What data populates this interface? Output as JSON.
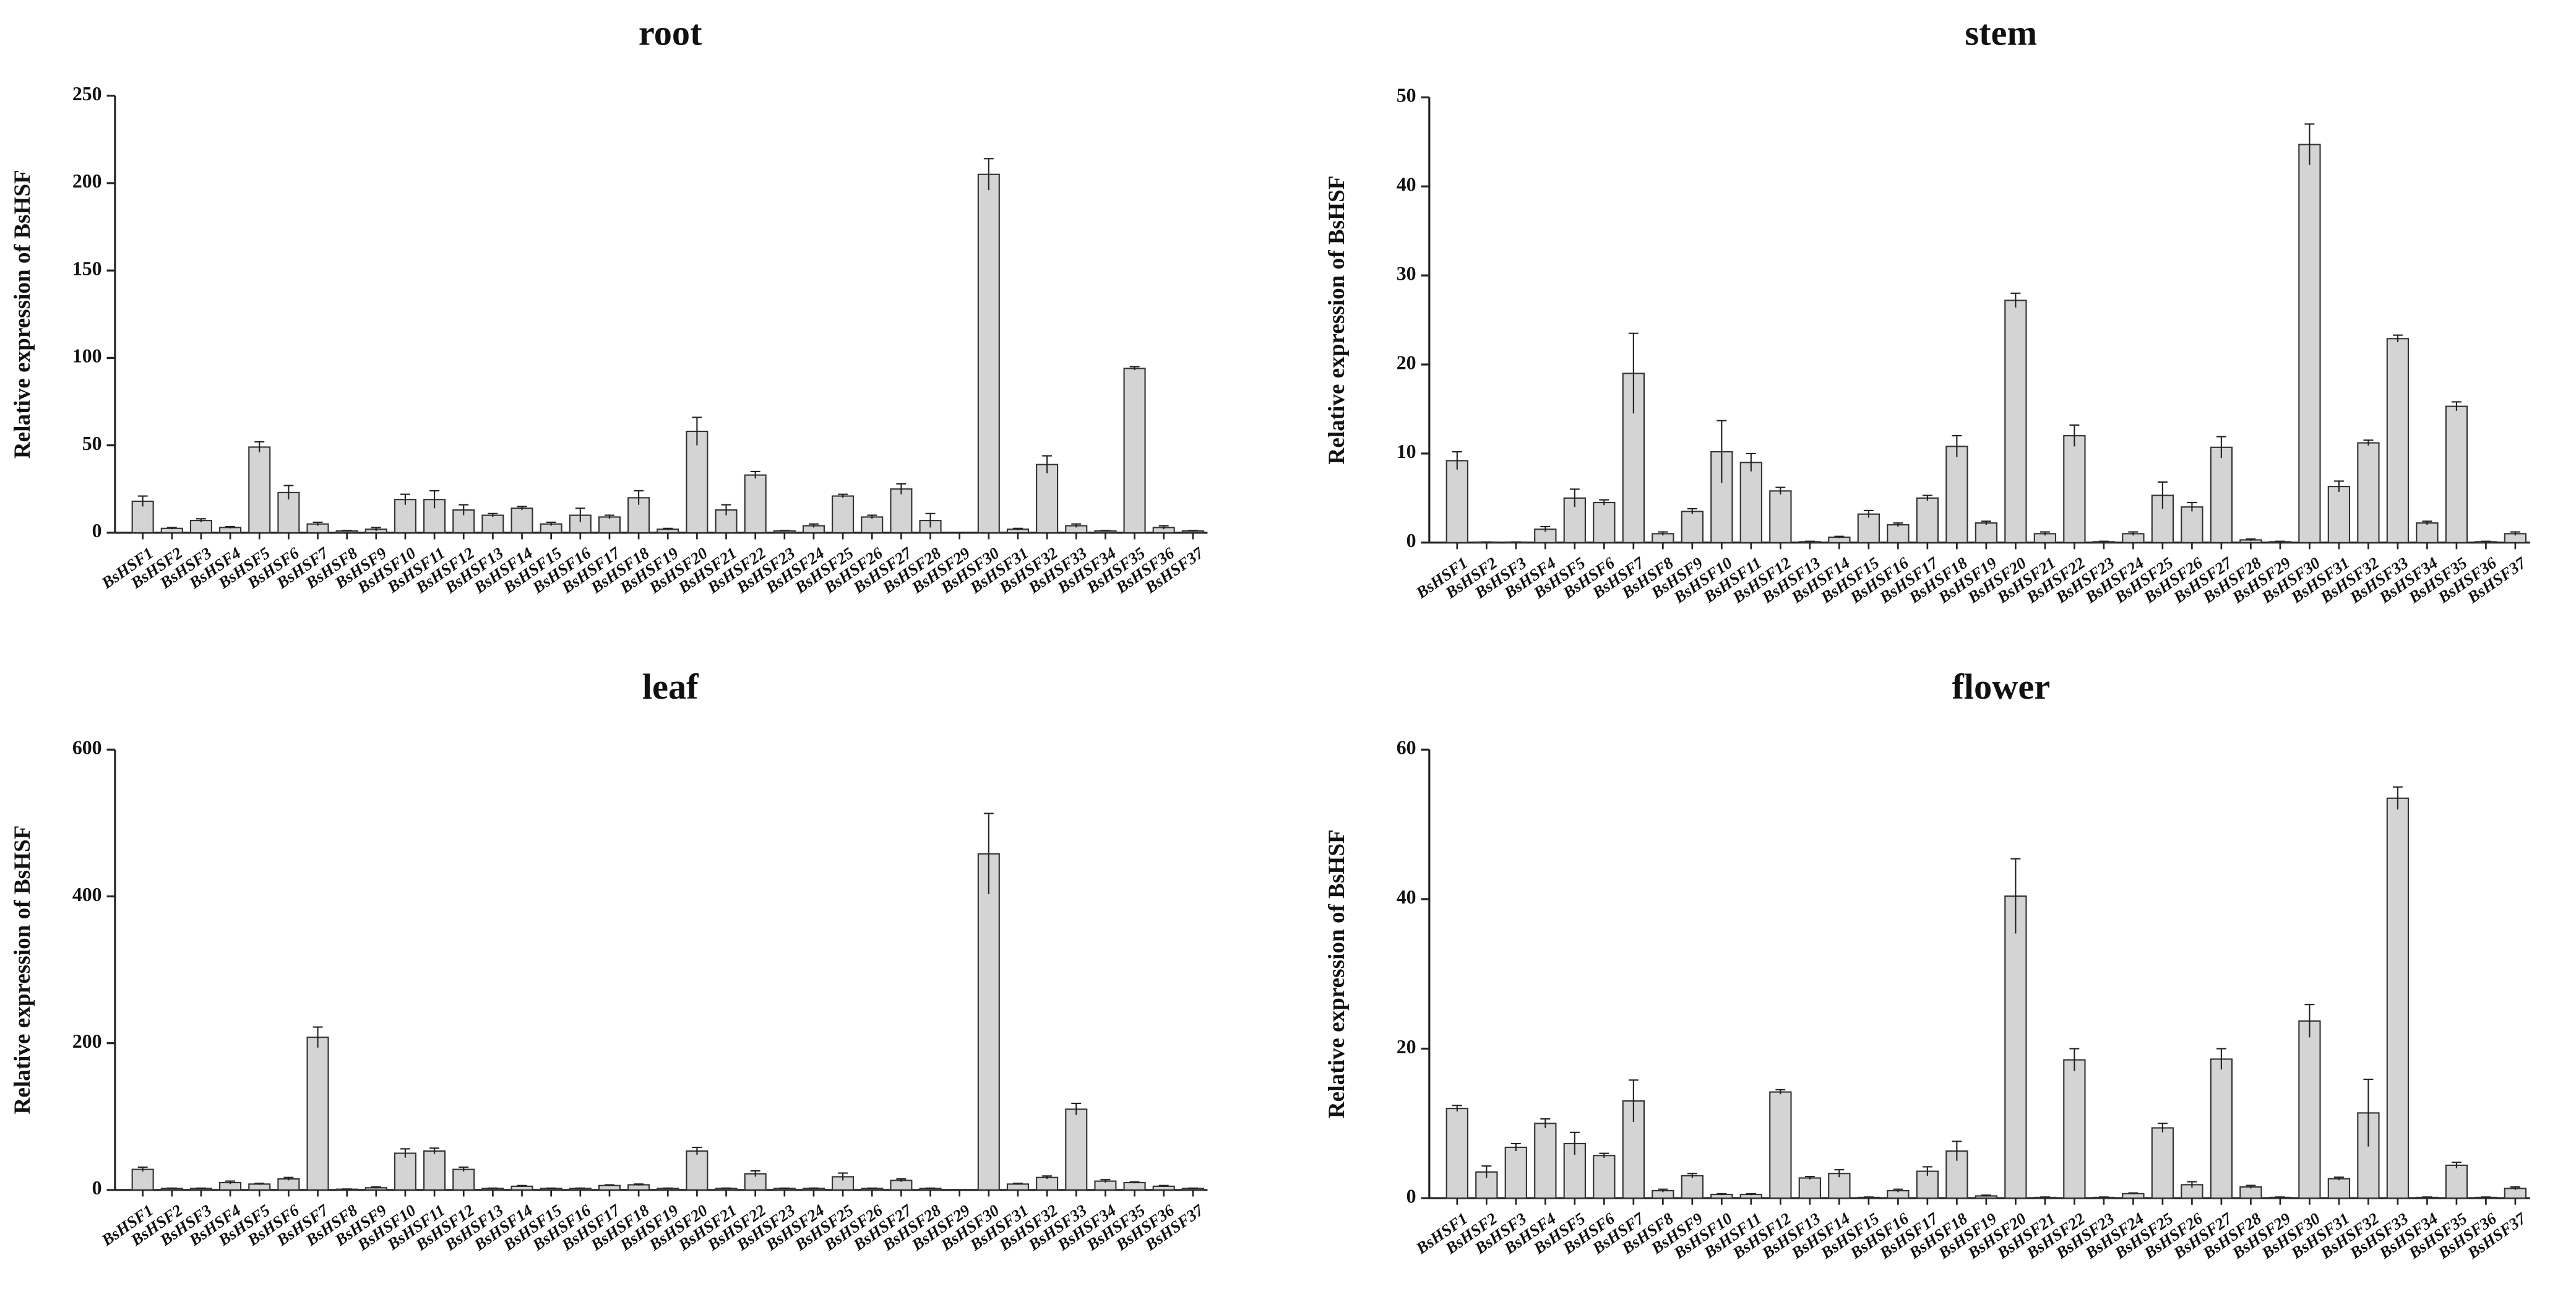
{
  "chart_data": [
    {
      "type": "bar",
      "title": "root",
      "y_label": "Relative expression of BsHSF",
      "color": "#d4d4d4",
      "categories": [
        "BsHSF1",
        "BsHSF2",
        "BsHSF3",
        "BsHSF4",
        "BsHSF5",
        "BsHSF6",
        "BsHSF7",
        "BsHSF8",
        "BsHSF9",
        "BsHSF10",
        "BsHSF11",
        "BsHSF12",
        "BsHSF13",
        "BsHSF14",
        "BsHSF15",
        "BsHSF16",
        "BsHSF17",
        "BsHSF18",
        "BsHSF19",
        "BsHSF20",
        "BsHSF21",
        "BsHSF22",
        "BsHSF23",
        "BsHSF24",
        "BsHSF25",
        "BsHSF26",
        "BsHSF27",
        "BsHSF28",
        "BsHSF29",
        "BsHSF30",
        "BsHSF31",
        "BsHSF32",
        "BsHSF33",
        "BsHSF34",
        "BsHSF35",
        "BsHSF36",
        "BsHSF37"
      ],
      "values": [
        18,
        2.5,
        7,
        3,
        49,
        23,
        5,
        1,
        2,
        19,
        19,
        13,
        10,
        14,
        5,
        10,
        9,
        20,
        2,
        58,
        13,
        33,
        1,
        4,
        21,
        9,
        25,
        7,
        0,
        205,
        2,
        39,
        4,
        1,
        94,
        3,
        1
      ],
      "errors": [
        3,
        0.5,
        1,
        0.5,
        3,
        4,
        1,
        0.3,
        1,
        3,
        5,
        3,
        1,
        1,
        1,
        4,
        1,
        4,
        0.5,
        8,
        3,
        2,
        0.3,
        1,
        1,
        1,
        3,
        4,
        0,
        9,
        0.5,
        5,
        1,
        0.3,
        1,
        1,
        0.3
      ],
      "ylim": [
        0,
        250
      ],
      "yticks": [
        0,
        50,
        100,
        150,
        200,
        250
      ]
    },
    {
      "type": "bar",
      "title": "stem",
      "y_label": "Relative expression of BsHSF",
      "color": "#d4d4d4",
      "categories": [
        "BsHSF1",
        "BsHSF2",
        "BsHSF3",
        "BsHSF4",
        "BsHSF5",
        "BsHSF6",
        "BsHSF7",
        "BsHSF8",
        "BsHSF9",
        "BsHSF10",
        "BsHSF11",
        "BsHSF12",
        "BsHSF13",
        "BsHSF14",
        "BsHSF15",
        "BsHSF16",
        "BsHSF17",
        "BsHSF18",
        "BsHSF19",
        "BsHSF20",
        "BsHSF21",
        "BsHSF22",
        "BsHSF23",
        "BsHSF24",
        "BsHSF25",
        "BsHSF26",
        "BsHSF27",
        "BsHSF28",
        "BsHSF29",
        "BsHSF30",
        "BsHSF31",
        "BsHSF32",
        "BsHSF33",
        "BsHSF34",
        "BsHSF35",
        "BsHSF36",
        "BsHSF37"
      ],
      "values": [
        9.2,
        0.05,
        0.05,
        1.5,
        5,
        4.5,
        19,
        1,
        3.5,
        10.2,
        9,
        5.8,
        0.1,
        0.6,
        3.2,
        2,
        5,
        10.8,
        2.2,
        27.2,
        1,
        12,
        0.1,
        1,
        5.3,
        4,
        10.7,
        0.3,
        0.1,
        44.7,
        6.3,
        11.2,
        22.9,
        2.2,
        15.3,
        0.1,
        1
      ],
      "errors": [
        1,
        0.02,
        0.02,
        0.3,
        1,
        0.3,
        4.5,
        0.2,
        0.3,
        3.5,
        1,
        0.4,
        0.05,
        0.1,
        0.4,
        0.2,
        0.3,
        1.2,
        0.2,
        0.8,
        0.2,
        1.2,
        0.05,
        0.2,
        1.5,
        0.5,
        1.2,
        0.1,
        0.05,
        2.3,
        0.6,
        0.3,
        0.4,
        0.2,
        0.5,
        0.05,
        0.2
      ],
      "ylim": [
        0,
        50
      ],
      "yticks": [
        0,
        10,
        20,
        30,
        40,
        50
      ]
    },
    {
      "type": "bar",
      "title": "leaf",
      "y_label": "Relative expression of BsHSF",
      "color": "#d4d4d4",
      "categories": [
        "BsHSF1",
        "BsHSF2",
        "BsHSF3",
        "BsHSF4",
        "BsHSF5",
        "BsHSF6",
        "BsHSF7",
        "BsHSF8",
        "BsHSF9",
        "BsHSF10",
        "BsHSF11",
        "BsHSF12",
        "BsHSF13",
        "BsHSF14",
        "BsHSF15",
        "BsHSF16",
        "BsHSF17",
        "BsHSF18",
        "BsHSF19",
        "BsHSF20",
        "BsHSF21",
        "BsHSF22",
        "BsHSF23",
        "BsHSF24",
        "BsHSF25",
        "BsHSF26",
        "BsHSF27",
        "BsHSF28",
        "BsHSF29",
        "BsHSF30",
        "BsHSF31",
        "BsHSF32",
        "BsHSF33",
        "BsHSF34",
        "BsHSF35",
        "BsHSF36",
        "BsHSF37"
      ],
      "values": [
        28,
        2,
        2,
        10,
        8,
        15,
        208,
        1,
        3,
        50,
        53,
        28,
        2,
        5,
        2,
        2,
        6,
        7,
        2,
        53,
        2,
        22,
        2,
        2,
        18,
        2,
        13,
        2,
        0,
        458,
        8,
        17,
        110,
        12,
        10,
        5,
        2
      ],
      "errors": [
        3,
        0.5,
        0.5,
        2,
        1,
        2,
        14,
        0.3,
        1,
        6,
        4,
        3,
        0.5,
        1,
        0.5,
        0.5,
        1,
        1,
        0.5,
        5,
        0.5,
        4,
        0.5,
        0.5,
        5,
        0.5,
        2,
        0.5,
        0,
        55,
        1,
        2,
        8,
        2,
        1,
        1,
        0.5
      ],
      "ylim": [
        0,
        600
      ],
      "yticks": [
        0,
        200,
        400,
        600
      ]
    },
    {
      "type": "bar",
      "title": "flower",
      "y_label": "Relative expression of BsHSF",
      "color": "#d4d4d4",
      "categories": [
        "BsHSF1",
        "BsHSF2",
        "BsHSF3",
        "BsHSF4",
        "BsHSF5",
        "BsHSF6",
        "BsHSF7",
        "BsHSF8",
        "BsHSF9",
        "BsHSF10",
        "BsHSF11",
        "BsHSF12",
        "BsHSF13",
        "BsHSF14",
        "BsHSF15",
        "BsHSF16",
        "BsHSF17",
        "BsHSF18",
        "BsHSF19",
        "BsHSF20",
        "BsHSF21",
        "BsHSF22",
        "BsHSF23",
        "BsHSF24",
        "BsHSF25",
        "BsHSF26",
        "BsHSF27",
        "BsHSF28",
        "BsHSF29",
        "BsHSF30",
        "BsHSF31",
        "BsHSF32",
        "BsHSF33",
        "BsHSF34",
        "BsHSF35",
        "BsHSF36",
        "BsHSF37"
      ],
      "values": [
        12,
        3.5,
        6.8,
        10,
        7.3,
        5.7,
        13,
        1,
        3,
        0.5,
        0.5,
        14.2,
        2.7,
        3.3,
        0.1,
        1,
        3.6,
        6.3,
        0.3,
        40.4,
        0.1,
        18.5,
        0.1,
        0.6,
        9.4,
        1.8,
        18.6,
        1.5,
        0.1,
        23.7,
        2.6,
        11.4,
        53.5,
        0.1,
        4.4,
        0.1,
        1.3
      ],
      "errors": [
        0.4,
        0.8,
        0.5,
        0.6,
        1.5,
        0.3,
        2.8,
        0.2,
        0.3,
        0.1,
        0.1,
        0.3,
        0.2,
        0.5,
        0.05,
        0.2,
        0.6,
        1.3,
        0.1,
        5,
        0.05,
        1.5,
        0.05,
        0.1,
        0.6,
        0.4,
        1.4,
        0.2,
        0.05,
        2.2,
        0.2,
        4.5,
        1.5,
        0.05,
        0.4,
        0.05,
        0.2
      ],
      "ylim": [
        0,
        60
      ],
      "yticks": [
        0,
        20,
        40,
        60
      ]
    }
  ]
}
